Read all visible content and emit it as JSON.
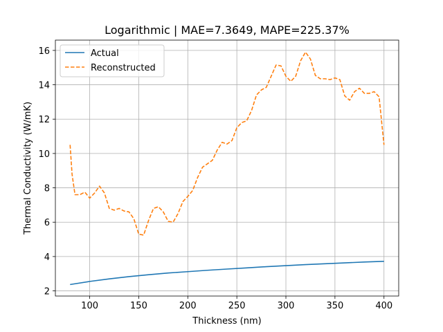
{
  "chart_data": {
    "type": "line",
    "title": "Logarithmic | MAE=7.3649, MAPE=225.37%",
    "xlabel": "Thickness (nm)",
    "ylabel": "Thermal Conductivity (W/mK)",
    "xlim": [
      65,
      415
    ],
    "ylim": [
      1.7,
      16.6
    ],
    "xticks": [
      100,
      150,
      200,
      250,
      300,
      350,
      400
    ],
    "yticks": [
      2,
      4,
      6,
      8,
      10,
      12,
      14,
      16
    ],
    "grid": true,
    "legend_position": "top-left",
    "series": [
      {
        "name": "Actual",
        "color": "#1f77b4",
        "style": "solid",
        "x": [
          80,
          100,
          120,
          140,
          160,
          180,
          200,
          220,
          240,
          260,
          280,
          300,
          320,
          340,
          360,
          380,
          400
        ],
        "y": [
          2.37,
          2.55,
          2.7,
          2.83,
          2.94,
          3.04,
          3.12,
          3.2,
          3.27,
          3.34,
          3.41,
          3.47,
          3.53,
          3.58,
          3.63,
          3.68,
          3.72
        ]
      },
      {
        "name": "Reconstructed",
        "color": "#ff7f0e",
        "style": "dashed",
        "x": [
          80,
          82,
          85,
          90,
          95,
          100,
          105,
          110,
          115,
          120,
          125,
          130,
          135,
          140,
          145,
          150,
          155,
          160,
          165,
          170,
          175,
          180,
          185,
          190,
          195,
          200,
          205,
          210,
          215,
          220,
          225,
          230,
          235,
          240,
          245,
          250,
          255,
          260,
          265,
          270,
          275,
          280,
          285,
          290,
          295,
          300,
          305,
          310,
          315,
          320,
          325,
          330,
          335,
          340,
          345,
          350,
          355,
          360,
          365,
          370,
          375,
          380,
          385,
          390,
          395,
          400
        ],
        "y": [
          10.5,
          8.8,
          7.6,
          7.6,
          7.75,
          7.4,
          7.7,
          8.1,
          7.7,
          6.8,
          6.7,
          6.8,
          6.65,
          6.6,
          6.2,
          5.3,
          5.25,
          6.1,
          6.8,
          6.9,
          6.6,
          6.05,
          6.0,
          6.5,
          7.2,
          7.5,
          7.85,
          8.6,
          9.2,
          9.4,
          9.6,
          10.2,
          10.65,
          10.55,
          10.75,
          11.5,
          11.8,
          11.9,
          12.5,
          13.4,
          13.7,
          13.85,
          14.5,
          15.15,
          15.1,
          14.5,
          14.2,
          14.5,
          15.4,
          15.9,
          15.5,
          14.55,
          14.35,
          14.35,
          14.3,
          14.4,
          14.3,
          13.35,
          13.1,
          13.6,
          13.8,
          13.5,
          13.5,
          13.6,
          13.3,
          10.5
        ]
      }
    ]
  }
}
